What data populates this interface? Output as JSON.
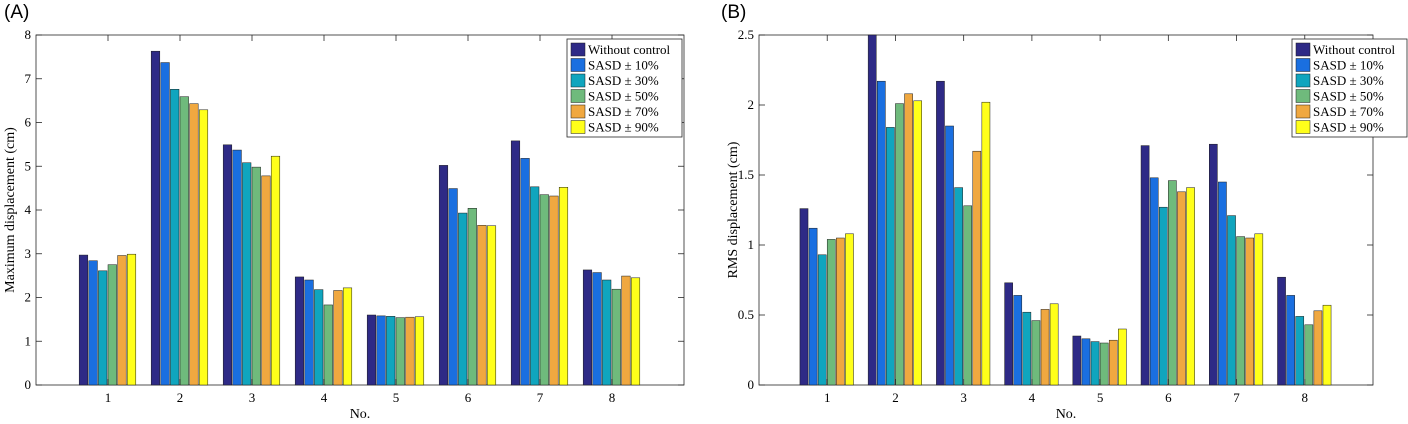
{
  "panels": {
    "a_label": "(A)",
    "b_label": "(B)"
  },
  "colors": {
    "series": [
      "#2e2a86",
      "#1a6fe0",
      "#10a5be",
      "#6fba7c",
      "#f0a840",
      "#ffff1a"
    ]
  },
  "chart_data": [
    {
      "type": "bar",
      "xlabel": "No.",
      "ylabel": "Maximum displacement (cm)",
      "categories": [
        "1",
        "2",
        "3",
        "4",
        "5",
        "6",
        "7",
        "8"
      ],
      "ylim": [
        0,
        8
      ],
      "yticks": [
        "0",
        "1",
        "2",
        "3",
        "4",
        "5",
        "6",
        "7",
        "8"
      ],
      "ytick_values": [
        0,
        1,
        2,
        3,
        4,
        5,
        6,
        7,
        8
      ],
      "legend_position": "top-right",
      "grid": false,
      "series": [
        {
          "name": "Without control",
          "values": [
            2.97,
            7.63,
            5.49,
            2.47,
            1.6,
            5.02,
            5.58,
            2.63
          ]
        },
        {
          "name": "SASD ± 10%",
          "values": [
            2.84,
            7.37,
            5.37,
            2.4,
            1.58,
            4.49,
            5.18,
            2.57
          ]
        },
        {
          "name": "SASD ± 30%",
          "values": [
            2.61,
            6.76,
            5.08,
            2.18,
            1.57,
            3.93,
            4.53,
            2.4
          ]
        },
        {
          "name": "SASD ± 50%",
          "values": [
            2.75,
            6.59,
            4.98,
            1.83,
            1.54,
            4.04,
            4.35,
            2.19
          ]
        },
        {
          "name": "SASD ± 70%",
          "values": [
            2.96,
            6.43,
            4.78,
            2.16,
            1.55,
            3.65,
            4.32,
            2.49
          ]
        },
        {
          "name": "SASD ± 90%",
          "values": [
            2.99,
            6.29,
            5.23,
            2.22,
            1.56,
            3.64,
            4.52,
            2.45
          ]
        }
      ]
    },
    {
      "type": "bar",
      "xlabel": "No.",
      "ylabel": "RMS displacement (cm)",
      "categories": [
        "1",
        "2",
        "3",
        "4",
        "5",
        "6",
        "7",
        "8"
      ],
      "ylim": [
        0,
        2.5
      ],
      "yticks": [
        "0",
        "0.5",
        "1",
        "1.5",
        "2",
        "2.5"
      ],
      "ytick_values": [
        0,
        0.5,
        1,
        1.5,
        2,
        2.5
      ],
      "legend_position": "top-right",
      "grid": false,
      "series": [
        {
          "name": "Without control",
          "values": [
            1.26,
            2.5,
            2.17,
            0.73,
            0.35,
            1.71,
            1.72,
            0.77
          ]
        },
        {
          "name": "SASD ± 10%",
          "values": [
            1.12,
            2.17,
            1.85,
            0.64,
            0.33,
            1.48,
            1.45,
            0.64
          ]
        },
        {
          "name": "SASD ± 30%",
          "values": [
            0.93,
            1.84,
            1.41,
            0.52,
            0.31,
            1.27,
            1.21,
            0.49
          ]
        },
        {
          "name": "SASD ± 50%",
          "values": [
            1.04,
            2.01,
            1.28,
            0.46,
            0.3,
            1.46,
            1.06,
            0.43
          ]
        },
        {
          "name": "SASD ± 70%",
          "values": [
            1.05,
            2.08,
            1.67,
            0.54,
            0.32,
            1.38,
            1.05,
            0.53
          ]
        },
        {
          "name": "SASD ± 90%",
          "values": [
            1.08,
            2.03,
            2.02,
            0.58,
            0.4,
            1.41,
            1.08,
            0.57
          ]
        }
      ]
    }
  ]
}
